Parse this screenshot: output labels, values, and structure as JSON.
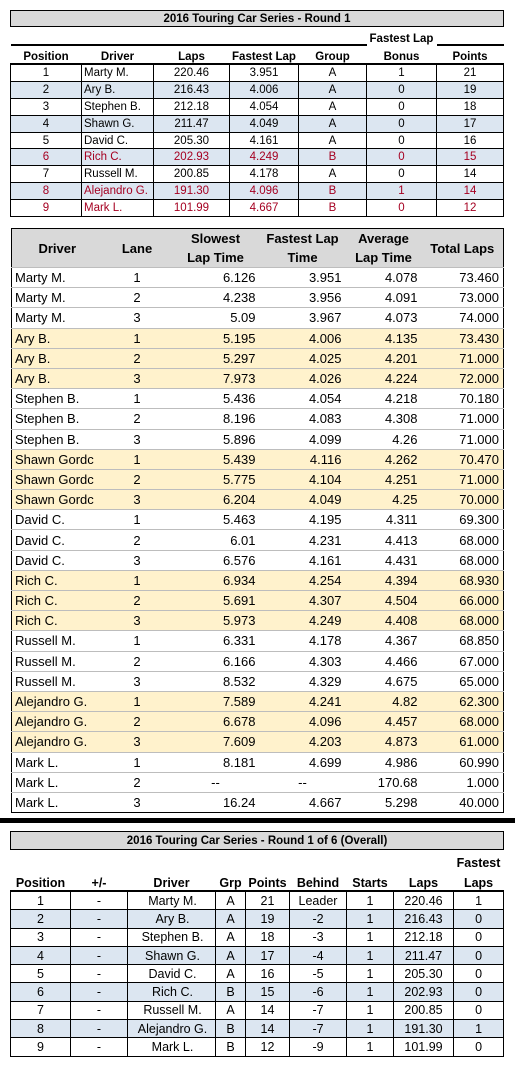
{
  "round_results": {
    "title": "2016 Touring Car Series - Round 1",
    "headers": {
      "position": "Position",
      "driver": "Driver",
      "laps": "Laps",
      "fastest_lap": "Fastest Lap",
      "group": "Group",
      "bonus_line1": "Fastest Lap",
      "bonus_line2": "Bonus",
      "points": "Points"
    },
    "rows": [
      {
        "position": "1",
        "driver": "Marty M.",
        "laps": "220.46",
        "fastest": "3.951",
        "group": "A",
        "bonus": "1",
        "points": "21"
      },
      {
        "position": "2",
        "driver": "Ary B.",
        "laps": "216.43",
        "fastest": "4.006",
        "group": "A",
        "bonus": "0",
        "points": "19"
      },
      {
        "position": "3",
        "driver": "Stephen B.",
        "laps": "212.18",
        "fastest": "4.054",
        "group": "A",
        "bonus": "0",
        "points": "18"
      },
      {
        "position": "4",
        "driver": "Shawn G.",
        "laps": "211.47",
        "fastest": "4.049",
        "group": "A",
        "bonus": "0",
        "points": "17"
      },
      {
        "position": "5",
        "driver": "David C.",
        "laps": "205.30",
        "fastest": "4.161",
        "group": "A",
        "bonus": "0",
        "points": "16"
      },
      {
        "position": "6",
        "driver": "Rich C.",
        "laps": "202.93",
        "fastest": "4.249",
        "group": "B",
        "bonus": "0",
        "points": "15"
      },
      {
        "position": "7",
        "driver": "Russell M.",
        "laps": "200.85",
        "fastest": "4.178",
        "group": "A",
        "bonus": "0",
        "points": "14"
      },
      {
        "position": "8",
        "driver": "Alejandro G.",
        "laps": "191.30",
        "fastest": "4.096",
        "group": "B",
        "bonus": "1",
        "points": "14"
      },
      {
        "position": "9",
        "driver": "Mark L.",
        "laps": "101.99",
        "fastest": "4.667",
        "group": "B",
        "bonus": "0",
        "points": "12"
      }
    ]
  },
  "lane_details": {
    "headers": {
      "driver": "Driver",
      "lane": "Lane",
      "slowest_1": "Slowest",
      "slowest_2": "Lap Time",
      "fastest_1": "Fastest Lap",
      "fastest_2": "Time",
      "average_1": "Average",
      "average_2": "Lap Time",
      "total": "Total Laps"
    },
    "rows": [
      {
        "driver": "Marty M.",
        "lane": "1",
        "slowest": "6.126",
        "fastest": "3.951",
        "average": "4.078",
        "total": "73.460"
      },
      {
        "driver": "Marty M.",
        "lane": "2",
        "slowest": "4.238",
        "fastest": "3.956",
        "average": "4.091",
        "total": "73.000"
      },
      {
        "driver": "Marty M.",
        "lane": "3",
        "slowest": "5.09",
        "fastest": "3.967",
        "average": "4.073",
        "total": "74.000"
      },
      {
        "driver": "Ary B.",
        "lane": "1",
        "slowest": "5.195",
        "fastest": "4.006",
        "average": "4.135",
        "total": "73.430"
      },
      {
        "driver": "Ary B.",
        "lane": "2",
        "slowest": "5.297",
        "fastest": "4.025",
        "average": "4.201",
        "total": "71.000"
      },
      {
        "driver": "Ary B.",
        "lane": "3",
        "slowest": "7.973",
        "fastest": "4.026",
        "average": "4.224",
        "total": "72.000"
      },
      {
        "driver": "Stephen B.",
        "lane": "1",
        "slowest": "5.436",
        "fastest": "4.054",
        "average": "4.218",
        "total": "70.180"
      },
      {
        "driver": "Stephen B.",
        "lane": "2",
        "slowest": "8.196",
        "fastest": "4.083",
        "average": "4.308",
        "total": "71.000"
      },
      {
        "driver": "Stephen B.",
        "lane": "3",
        "slowest": "5.896",
        "fastest": "4.099",
        "average": "4.26",
        "total": "71.000"
      },
      {
        "driver": "Shawn Gordc",
        "lane": "1",
        "slowest": "5.439",
        "fastest": "4.116",
        "average": "4.262",
        "total": "70.470"
      },
      {
        "driver": "Shawn Gordc",
        "lane": "2",
        "slowest": "5.775",
        "fastest": "4.104",
        "average": "4.251",
        "total": "71.000"
      },
      {
        "driver": "Shawn Gordc",
        "lane": "3",
        "slowest": "6.204",
        "fastest": "4.049",
        "average": "4.25",
        "total": "70.000"
      },
      {
        "driver": "David C.",
        "lane": "1",
        "slowest": "5.463",
        "fastest": "4.195",
        "average": "4.311",
        "total": "69.300"
      },
      {
        "driver": "David C.",
        "lane": "2",
        "slowest": "6.01",
        "fastest": "4.231",
        "average": "4.413",
        "total": "68.000"
      },
      {
        "driver": "David C.",
        "lane": "3",
        "slowest": "6.576",
        "fastest": "4.161",
        "average": "4.431",
        "total": "68.000"
      },
      {
        "driver": "Rich C.",
        "lane": "1",
        "slowest": "6.934",
        "fastest": "4.254",
        "average": "4.394",
        "total": "68.930"
      },
      {
        "driver": "Rich C.",
        "lane": "2",
        "slowest": "5.691",
        "fastest": "4.307",
        "average": "4.504",
        "total": "66.000"
      },
      {
        "driver": "Rich C.",
        "lane": "3",
        "slowest": "5.973",
        "fastest": "4.249",
        "average": "4.408",
        "total": "68.000"
      },
      {
        "driver": "Russell M.",
        "lane": "1",
        "slowest": "6.331",
        "fastest": "4.178",
        "average": "4.367",
        "total": "68.850"
      },
      {
        "driver": "Russell M.",
        "lane": "2",
        "slowest": "6.166",
        "fastest": "4.303",
        "average": "4.466",
        "total": "67.000"
      },
      {
        "driver": "Russell M.",
        "lane": "3",
        "slowest": "8.532",
        "fastest": "4.329",
        "average": "4.675",
        "total": "65.000"
      },
      {
        "driver": "Alejandro G.",
        "lane": "1",
        "slowest": "7.589",
        "fastest": "4.241",
        "average": "4.82",
        "total": "62.300"
      },
      {
        "driver": "Alejandro G.",
        "lane": "2",
        "slowest": "6.678",
        "fastest": "4.096",
        "average": "4.457",
        "total": "68.000"
      },
      {
        "driver": "Alejandro G.",
        "lane": "3",
        "slowest": "7.609",
        "fastest": "4.203",
        "average": "4.873",
        "total": "61.000"
      },
      {
        "driver": "Mark L.",
        "lane": "1",
        "slowest": "8.181",
        "fastest": "4.699",
        "average": "4.986",
        "total": "60.990"
      },
      {
        "driver": "Mark L.",
        "lane": "2",
        "slowest": "--",
        "fastest": "--",
        "average": "170.68",
        "total": "1.000"
      },
      {
        "driver": "Mark L.",
        "lane": "3",
        "slowest": "16.24",
        "fastest": "4.667",
        "average": "5.298",
        "total": "40.000"
      }
    ]
  },
  "overall": {
    "title": "2016 Touring Car Series - Round 1 of 6  (Overall)",
    "headers": {
      "position": "Position",
      "change": "+/-",
      "driver": "Driver",
      "grp": "Grp",
      "points": "Points",
      "behind": "Behind",
      "starts": "Starts",
      "laps": "Laps",
      "fastest_1": "Fastest",
      "fastest_2": "Laps"
    },
    "rows": [
      {
        "position": "1",
        "change": "-",
        "driver": "Marty M.",
        "grp": "A",
        "points": "21",
        "behind": "Leader",
        "starts": "1",
        "laps": "220.46",
        "fastest": "1"
      },
      {
        "position": "2",
        "change": "-",
        "driver": "Ary B.",
        "grp": "A",
        "points": "19",
        "behind": "-2",
        "starts": "1",
        "laps": "216.43",
        "fastest": "0"
      },
      {
        "position": "3",
        "change": "-",
        "driver": "Stephen B.",
        "grp": "A",
        "points": "18",
        "behind": "-3",
        "starts": "1",
        "laps": "212.18",
        "fastest": "0"
      },
      {
        "position": "4",
        "change": "-",
        "driver": "Shawn G.",
        "grp": "A",
        "points": "17",
        "behind": "-4",
        "starts": "1",
        "laps": "211.47",
        "fastest": "0"
      },
      {
        "position": "5",
        "change": "-",
        "driver": "David C.",
        "grp": "A",
        "points": "16",
        "behind": "-5",
        "starts": "1",
        "laps": "205.30",
        "fastest": "0"
      },
      {
        "position": "6",
        "change": "-",
        "driver": "Rich C.",
        "grp": "B",
        "points": "15",
        "behind": "-6",
        "starts": "1",
        "laps": "202.93",
        "fastest": "0"
      },
      {
        "position": "7",
        "change": "-",
        "driver": "Russell M.",
        "grp": "A",
        "points": "14",
        "behind": "-7",
        "starts": "1",
        "laps": "200.85",
        "fastest": "0"
      },
      {
        "position": "8",
        "change": "-",
        "driver": "Alejandro G.",
        "grp": "B",
        "points": "14",
        "behind": "-7",
        "starts": "1",
        "laps": "191.30",
        "fastest": "1"
      },
      {
        "position": "9",
        "change": "-",
        "driver": "Mark L.",
        "grp": "B",
        "points": "12",
        "behind": "-9",
        "starts": "1",
        "laps": "101.99",
        "fastest": "0"
      }
    ]
  }
}
